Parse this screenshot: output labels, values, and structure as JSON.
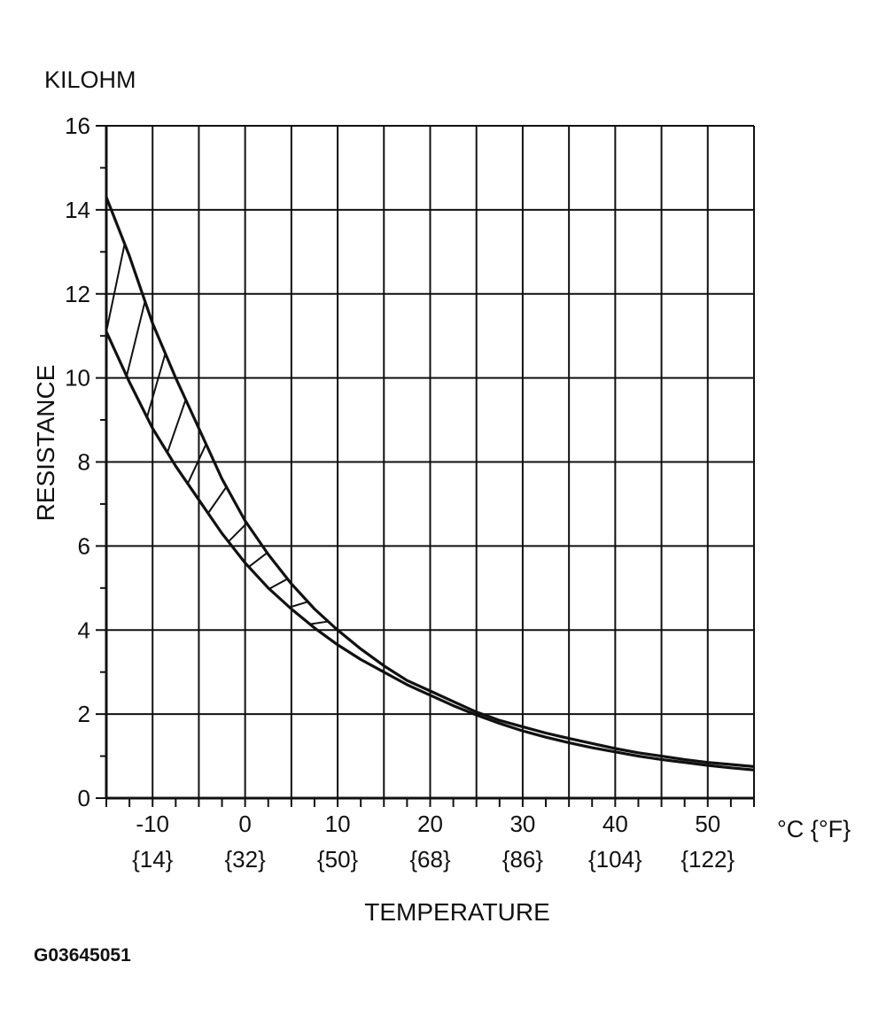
{
  "figure_id": "G03645051",
  "chart_data": {
    "type": "area",
    "y_unit_label": "KILOHM",
    "ylabel": "RESISTANCE",
    "xlabel": "TEMPERATURE",
    "x_unit_label": "°C {°F}",
    "xlim": [
      -15,
      55
    ],
    "ylim": [
      0,
      16
    ],
    "grid": true,
    "hatched_band": true,
    "y_ticks": [
      {
        "value": 0,
        "label": "0"
      },
      {
        "value": 2,
        "label": "2"
      },
      {
        "value": 4,
        "label": "4"
      },
      {
        "value": 6,
        "label": "6"
      },
      {
        "value": 8,
        "label": "8"
      },
      {
        "value": 10,
        "label": "10"
      },
      {
        "value": 12,
        "label": "12"
      },
      {
        "value": 14,
        "label": "14"
      },
      {
        "value": 16,
        "label": "16"
      }
    ],
    "x_ticks": [
      {
        "value": -10,
        "label": "-10",
        "sub": "{14}"
      },
      {
        "value": 0,
        "label": "0",
        "sub": "{32}"
      },
      {
        "value": 10,
        "label": "10",
        "sub": "{50}"
      },
      {
        "value": 20,
        "label": "20",
        "sub": "{68}"
      },
      {
        "value": 30,
        "label": "30",
        "sub": "{86}"
      },
      {
        "value": 40,
        "label": "40",
        "sub": "{104}"
      },
      {
        "value": 50,
        "label": "50",
        "sub": "{122}"
      }
    ],
    "x_minor_step": 2.5,
    "x_grid_step": 5,
    "series": [
      {
        "bound": "upper",
        "x": [
          -15,
          -12.5,
          -10,
          -7.5,
          -5,
          -2.5,
          0,
          2.5,
          5,
          7.5,
          10,
          12.5,
          15,
          17.5,
          20,
          22.5,
          25,
          27.5,
          30,
          32.5,
          35,
          37.5,
          40,
          42.5,
          45,
          47.5,
          50,
          52.5,
          55
        ],
        "values": [
          14.3,
          12.9,
          11.3,
          10.0,
          8.8,
          7.6,
          6.6,
          5.8,
          5.1,
          4.5,
          4.0,
          3.55,
          3.15,
          2.8,
          2.55,
          2.3,
          2.05,
          1.85,
          1.7,
          1.55,
          1.42,
          1.3,
          1.18,
          1.08,
          1.0,
          0.92,
          0.85,
          0.8,
          0.75
        ]
      },
      {
        "bound": "lower",
        "x": [
          -15,
          -12.5,
          -10,
          -7.5,
          -5,
          -2.5,
          0,
          2.5,
          5,
          7.5,
          10,
          12.5,
          15,
          17.5,
          20,
          22.5,
          25,
          27.5,
          30,
          32.5,
          35,
          37.5,
          40,
          42.5,
          45,
          47.5,
          50,
          52.5,
          55
        ],
        "values": [
          11.1,
          9.9,
          8.8,
          7.9,
          7.1,
          6.3,
          5.6,
          5.0,
          4.5,
          4.05,
          3.65,
          3.3,
          3.0,
          2.7,
          2.45,
          2.2,
          1.98,
          1.78,
          1.6,
          1.45,
          1.32,
          1.2,
          1.1,
          1.0,
          0.92,
          0.85,
          0.78,
          0.72,
          0.67
        ]
      }
    ]
  }
}
